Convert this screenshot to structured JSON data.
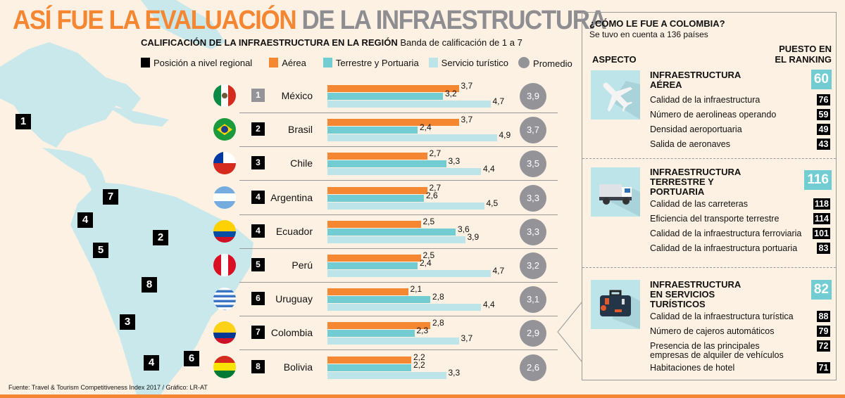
{
  "title_orange": "ASÍ FUE LA EVALUACIÓN",
  "title_gray": "DE LA  INFRAESTRUCTURA",
  "subtitle_bold": "CALIFICACIÓN DE LA INFRAESTRUCTURA EN LA REGIÓN",
  "subtitle": "Banda de calificación de 1 a 7",
  "legend": [
    "Posición a nivel regional",
    "Aérea",
    "Terrestre y Portuaria",
    "Servicio turístico",
    "Promedio"
  ],
  "colors": {
    "aerea": "#f58632",
    "terrestre": "#72cdd3",
    "turistico": "#bde4e9",
    "promedio": "#949498",
    "rank": "#000000",
    "accent_title": "#f58632"
  },
  "chart_data": {
    "type": "bar",
    "orientation": "horizontal",
    "categories": [
      "México",
      "Brasil",
      "Chile",
      "Argentina",
      "Ecuador",
      "Perú",
      "Uruguay",
      "Colombia",
      "Bolivia"
    ],
    "ranks": [
      "1",
      "2",
      "3",
      "4",
      "4",
      "5",
      "6",
      "7",
      "8"
    ],
    "series": [
      {
        "name": "Aérea",
        "values": [
          3.7,
          3.7,
          2.7,
          2.7,
          2.5,
          2.5,
          2.1,
          2.8,
          2.2
        ],
        "labels": [
          "3,7",
          "3,7",
          "2,7",
          "2,7",
          "2,5",
          "2,5",
          "2,1",
          "2,8",
          "2,2"
        ]
      },
      {
        "name": "Terrestre y Portuaria",
        "values": [
          3.2,
          2.4,
          3.3,
          2.6,
          3.6,
          2.4,
          2.8,
          2.3,
          2.2
        ],
        "labels": [
          "3,2",
          "2,4",
          "3,3",
          "2,6",
          "3,6",
          "2,4",
          "2,8",
          "2,3",
          "2,2"
        ]
      },
      {
        "name": "Servicio turístico",
        "values": [
          4.7,
          4.9,
          4.4,
          4.5,
          3.9,
          4.7,
          4.4,
          3.7,
          3.3
        ],
        "labels": [
          "4,7",
          "4,9",
          "4,4",
          "4,5",
          "3,9",
          "4,7",
          "4,4",
          "3,7",
          "3,3"
        ]
      }
    ],
    "promedio": [
      "3,9",
      "3,7",
      "3,5",
      "3,3",
      "3,3",
      "3,2",
      "3,1",
      "2,9",
      "2,6"
    ],
    "xlim": [
      1,
      7
    ]
  },
  "map_ranks": [
    "1",
    "7",
    "4",
    "2",
    "5",
    "8",
    "3",
    "4",
    "6"
  ],
  "footer": "Fuente: Travel & Tourism Competitiveness Index 2017 / Gráfico: LR-AT",
  "panel": {
    "heading": "¿CÓMO LE FUE A COLOMBIA?",
    "subheading": "Se tuvo en cuenta a 136 países",
    "col_aspect": "ASPECTO",
    "col_rank": [
      "PUESTO EN",
      "EL RANKING"
    ],
    "sections": [
      {
        "icon": "airplane-icon",
        "title": [
          "INFRAESTRUCTURA",
          "AÉREA"
        ],
        "rank": "60",
        "items": [
          {
            "label": "Calidad de la infraestructura",
            "rank": "76"
          },
          {
            "label": "Número de aerolineas operando",
            "rank": "59"
          },
          {
            "label": "Densidad aeroportuaria",
            "rank": "49"
          },
          {
            "label": "Salida de aeronaves",
            "rank": "43"
          }
        ]
      },
      {
        "icon": "truck-icon",
        "title": [
          "INFRAESTRUCTURA",
          "TERRESTRE Y",
          "PORTUARIA"
        ],
        "rank": "116",
        "items": [
          {
            "label": "Calidad de las carreteras",
            "rank": "118"
          },
          {
            "label": "Eficiencia del transporte terrestre",
            "rank": "114"
          },
          {
            "label": "Calidad de la infraestructura ferroviaria",
            "rank": "101"
          },
          {
            "label": "Calidad de la infraestructura portuaria",
            "rank": "83"
          }
        ]
      },
      {
        "icon": "suitcase-icon",
        "title": [
          "INFRAESTRUCTURA",
          "EN SERVICIOS",
          "TURÍSTICOS"
        ],
        "rank": "82",
        "items": [
          {
            "label": "Calidad de la infraestructura turística",
            "rank": "88"
          },
          {
            "label": "Número de cajeros automáticos",
            "rank": "79"
          },
          {
            "label": "Presencia de las principales",
            "label2": "empresas de alquiler de vehículos",
            "rank": "72"
          },
          {
            "label": "Habitaciones de hotel",
            "rank": "71"
          }
        ]
      }
    ]
  }
}
